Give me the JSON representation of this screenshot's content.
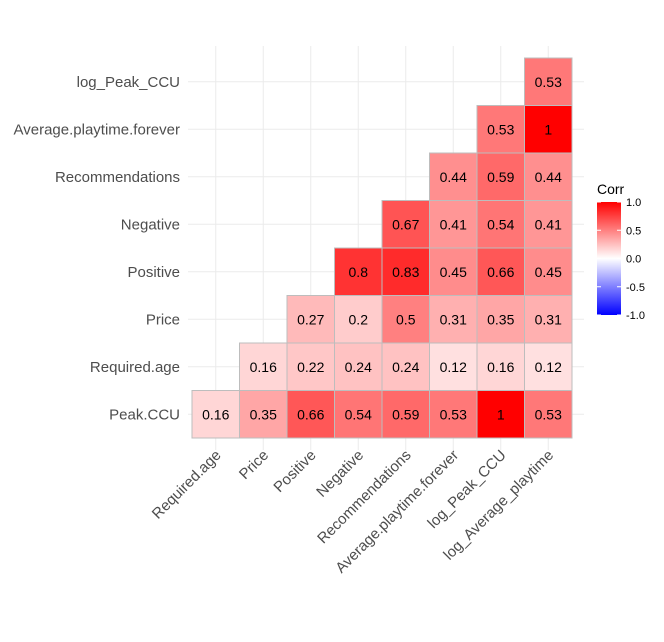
{
  "chart_data": {
    "type": "heatmap",
    "variables": [
      "Peak.CCU",
      "Required.age",
      "Price",
      "Positive",
      "Negative",
      "Recommendations",
      "Average.playtime.forever",
      "log_Peak_CCU",
      "log_Average_playtime"
    ],
    "row_labels": [
      "Peak.CCU",
      "Required.age",
      "Price",
      "Positive",
      "Negative",
      "Recommendations",
      "Average.playtime.forever",
      "log_Peak_CCU"
    ],
    "col_labels": [
      "Required.age",
      "Price",
      "Positive",
      "Negative",
      "Recommendations",
      "Average.playtime.forever",
      "log_Peak_CCU",
      "log_Average_playtime"
    ],
    "cells": [
      {
        "row": "Peak.CCU",
        "col": "Required.age",
        "value": 0.16,
        "label": "0.16"
      },
      {
        "row": "Peak.CCU",
        "col": "Price",
        "value": 0.35,
        "label": "0.35"
      },
      {
        "row": "Peak.CCU",
        "col": "Positive",
        "value": 0.66,
        "label": "0.66"
      },
      {
        "row": "Peak.CCU",
        "col": "Negative",
        "value": 0.54,
        "label": "0.54"
      },
      {
        "row": "Peak.CCU",
        "col": "Recommendations",
        "value": 0.59,
        "label": "0.59"
      },
      {
        "row": "Peak.CCU",
        "col": "Average.playtime.forever",
        "value": 0.53,
        "label": "0.53"
      },
      {
        "row": "Peak.CCU",
        "col": "log_Peak_CCU",
        "value": 1.0,
        "label": "1"
      },
      {
        "row": "Peak.CCU",
        "col": "log_Average_playtime",
        "value": 0.53,
        "label": "0.53"
      },
      {
        "row": "Required.age",
        "col": "Price",
        "value": 0.16,
        "label": "0.16"
      },
      {
        "row": "Required.age",
        "col": "Positive",
        "value": 0.22,
        "label": "0.22"
      },
      {
        "row": "Required.age",
        "col": "Negative",
        "value": 0.24,
        "label": "0.24"
      },
      {
        "row": "Required.age",
        "col": "Recommendations",
        "value": 0.24,
        "label": "0.24"
      },
      {
        "row": "Required.age",
        "col": "Average.playtime.forever",
        "value": 0.12,
        "label": "0.12"
      },
      {
        "row": "Required.age",
        "col": "log_Peak_CCU",
        "value": 0.16,
        "label": "0.16"
      },
      {
        "row": "Required.age",
        "col": "log_Average_playtime",
        "value": 0.12,
        "label": "0.12"
      },
      {
        "row": "Price",
        "col": "Positive",
        "value": 0.27,
        "label": "0.27"
      },
      {
        "row": "Price",
        "col": "Negative",
        "value": 0.2,
        "label": "0.2"
      },
      {
        "row": "Price",
        "col": "Recommendations",
        "value": 0.5,
        "label": "0.5"
      },
      {
        "row": "Price",
        "col": "Average.playtime.forever",
        "value": 0.31,
        "label": "0.31"
      },
      {
        "row": "Price",
        "col": "log_Peak_CCU",
        "value": 0.35,
        "label": "0.35"
      },
      {
        "row": "Price",
        "col": "log_Average_playtime",
        "value": 0.31,
        "label": "0.31"
      },
      {
        "row": "Positive",
        "col": "Negative",
        "value": 0.8,
        "label": "0.8"
      },
      {
        "row": "Positive",
        "col": "Recommendations",
        "value": 0.83,
        "label": "0.83"
      },
      {
        "row": "Positive",
        "col": "Average.playtime.forever",
        "value": 0.45,
        "label": "0.45"
      },
      {
        "row": "Positive",
        "col": "log_Peak_CCU",
        "value": 0.66,
        "label": "0.66"
      },
      {
        "row": "Positive",
        "col": "log_Average_playtime",
        "value": 0.45,
        "label": "0.45"
      },
      {
        "row": "Negative",
        "col": "Recommendations",
        "value": 0.67,
        "label": "0.67"
      },
      {
        "row": "Negative",
        "col": "Average.playtime.forever",
        "value": 0.41,
        "label": "0.41"
      },
      {
        "row": "Negative",
        "col": "log_Peak_CCU",
        "value": 0.54,
        "label": "0.54"
      },
      {
        "row": "Negative",
        "col": "log_Average_playtime",
        "value": 0.41,
        "label": "0.41"
      },
      {
        "row": "Recommendations",
        "col": "Average.playtime.forever",
        "value": 0.44,
        "label": "0.44"
      },
      {
        "row": "Recommendations",
        "col": "log_Peak_CCU",
        "value": 0.59,
        "label": "0.59"
      },
      {
        "row": "Recommendations",
        "col": "log_Average_playtime",
        "value": 0.44,
        "label": "0.44"
      },
      {
        "row": "Average.playtime.forever",
        "col": "log_Peak_CCU",
        "value": 0.53,
        "label": "0.53"
      },
      {
        "row": "Average.playtime.forever",
        "col": "log_Average_playtime",
        "value": 1.0,
        "label": "1"
      },
      {
        "row": "log_Peak_CCU",
        "col": "log_Average_playtime",
        "value": 0.53,
        "label": "0.53"
      }
    ],
    "legend": {
      "title": "Corr",
      "placement": "right",
      "range": [
        -1,
        1
      ],
      "ticks": [
        {
          "value": 1.0,
          "label": "1.0"
        },
        {
          "value": 0.5,
          "label": "0.5"
        },
        {
          "value": 0.0,
          "label": "0.0"
        },
        {
          "value": -0.5,
          "label": "-0.5"
        },
        {
          "value": -1.0,
          "label": "-1.0"
        }
      ],
      "colors": {
        "low": "#0000ff",
        "mid": "#ffffff",
        "high": "#ff0000"
      }
    },
    "grid": true
  }
}
